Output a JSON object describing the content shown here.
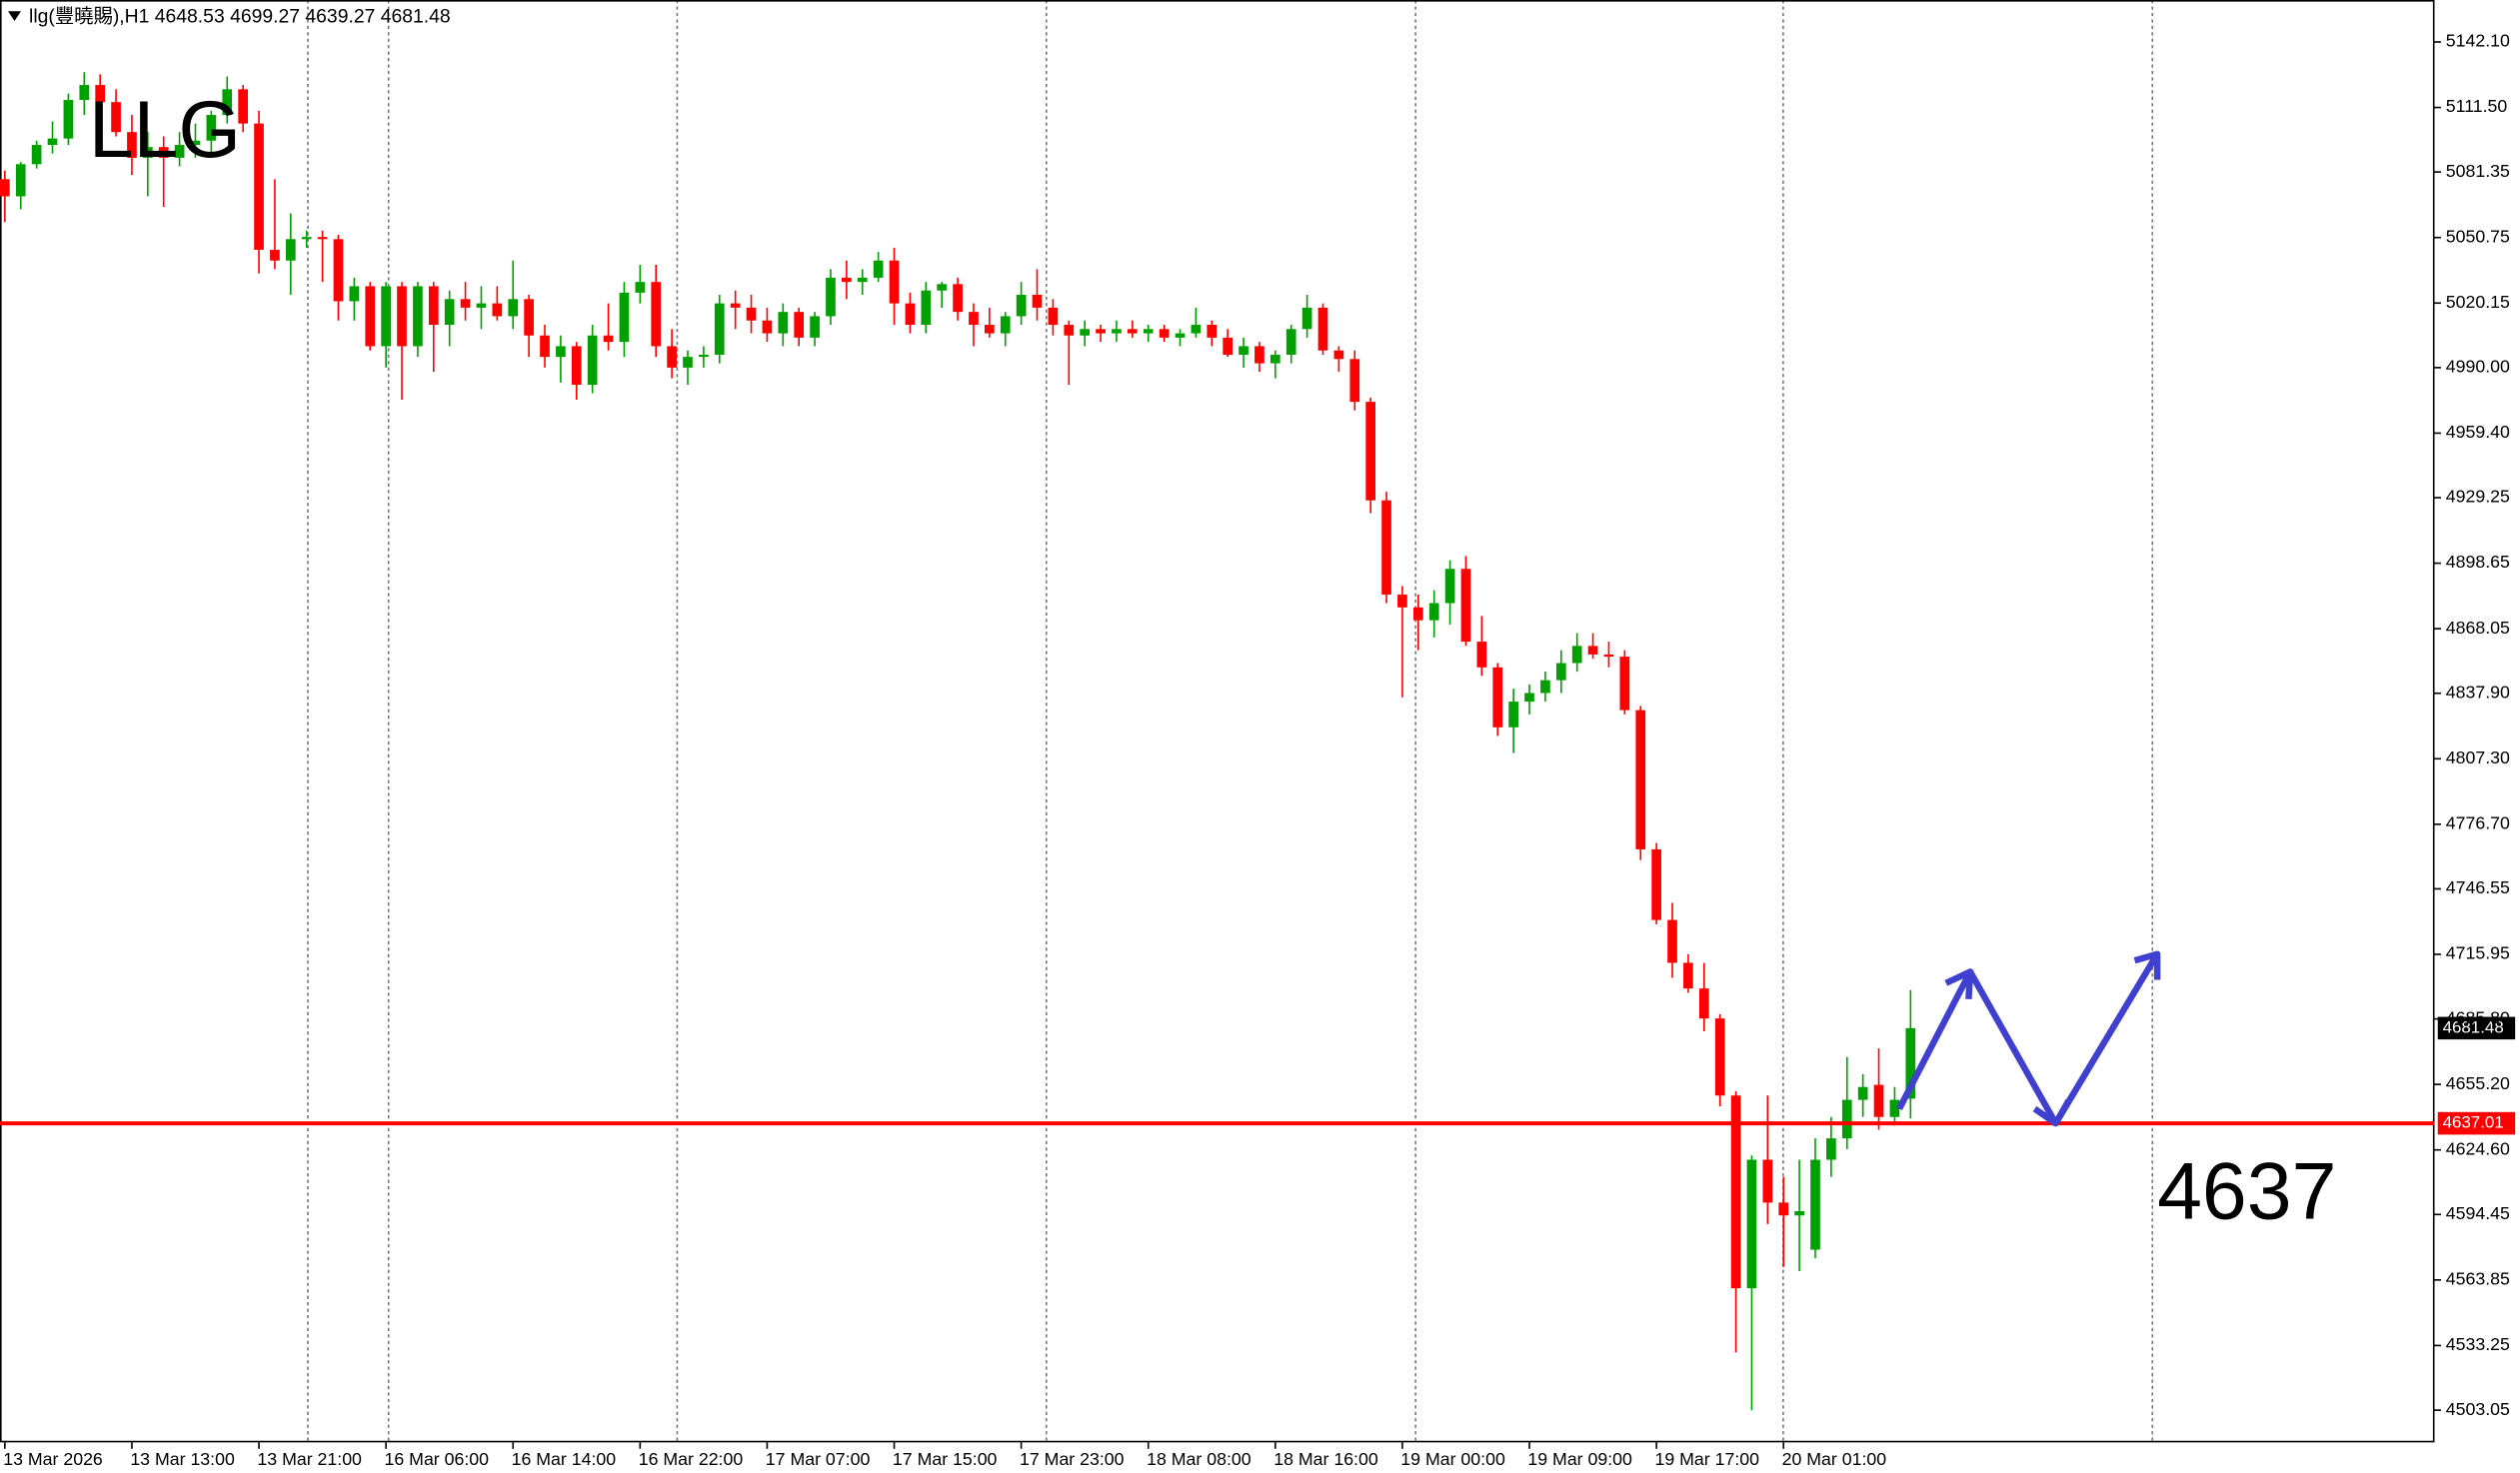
{
  "chart_data": {
    "type": "candlestick",
    "title": "llg(豐曉賜),H1",
    "annotations": [
      "LLG",
      "4637"
    ],
    "up_color": "#00a000",
    "down_color": "#ff0000",
    "ylim": [
      4488,
      5161.7
    ],
    "yticks": [
      {
        "value": 5142.1,
        "label": "5142.10"
      },
      {
        "value": 5111.5,
        "label": "5111.50"
      },
      5081.35,
      5050.75,
      5020.15,
      {
        "value": 4990,
        "label": "4990.00"
      },
      {
        "value": 4959.4,
        "label": "4959.40"
      },
      4929.25,
      4898.65,
      4868.05,
      {
        "value": 4837.9,
        "label": "4837.90"
      },
      {
        "value": 4807.3,
        "label": "4807.30"
      },
      {
        "value": 4776.7,
        "label": "4776.70"
      },
      4746.55,
      4715.95,
      {
        "value": 4685.8,
        "label": "4685.80"
      },
      {
        "value": 4655.2,
        "label": "4655.20"
      },
      {
        "value": 4624.6,
        "label": "4624.60"
      },
      4594.45,
      4563.85,
      4533.25,
      4503.05
    ],
    "x_labels": [
      "13 Mar 2026",
      "13 Mar 13:00",
      "13 Mar 21:00",
      "16 Mar 06:00",
      "16 Mar 14:00",
      "16 Mar 22:00",
      "17 Mar 07:00",
      "17 Mar 15:00",
      "17 Mar 23:00",
      "18 Mar 08:00",
      "18 Mar 16:00",
      "19 Mar 00:00",
      "19 Mar 09:00",
      "19 Mar 17:00",
      "20 Mar 01:00"
    ],
    "hline": {
      "value": 4637.01,
      "color": "#ff0000"
    },
    "ohlc": [
      [
        5078,
        5082,
        5058,
        5070
      ],
      [
        5070,
        5086,
        5064,
        5085
      ],
      [
        5085,
        5096,
        5083,
        5094
      ],
      [
        5094,
        5105,
        5090,
        5097
      ],
      [
        5097,
        5118,
        5094,
        5115
      ],
      [
        5115,
        5128,
        5108,
        5122
      ],
      [
        5122,
        5127,
        5112,
        5114
      ],
      [
        5114,
        5120,
        5098,
        5100
      ],
      [
        5100,
        5108,
        5080,
        5088
      ],
      [
        5088,
        5100,
        5070,
        5093
      ],
      [
        5093,
        5098,
        5065,
        5088
      ],
      [
        5088,
        5100,
        5084,
        5094
      ],
      [
        5094,
        5104,
        5088,
        5096
      ],
      [
        5096,
        5110,
        5088,
        5108
      ],
      [
        5108,
        5126,
        5104,
        5120
      ],
      [
        5120,
        5122,
        5100,
        5104
      ],
      [
        5104,
        5110,
        5034,
        5045
      ],
      [
        5045,
        5078,
        5036,
        5040
      ],
      [
        5040,
        5062,
        5024,
        5050
      ],
      [
        5050,
        5054,
        5046,
        5051
      ],
      [
        5051,
        5054,
        5030,
        5050
      ],
      [
        5050,
        5052,
        5012,
        5021
      ],
      [
        5021,
        5032,
        5012,
        5028
      ],
      [
        5028,
        5030,
        4998,
        5000
      ],
      [
        5000,
        5030,
        4990,
        5028
      ],
      [
        5028,
        5030,
        4975,
        5000
      ],
      [
        5000,
        5030,
        4995,
        5028
      ],
      [
        5028,
        5030,
        4988,
        5010
      ],
      [
        5010,
        5026,
        5000,
        5022
      ],
      [
        5022,
        5030,
        5012,
        5018
      ],
      [
        5018,
        5028,
        5008,
        5020
      ],
      [
        5020,
        5028,
        5012,
        5014
      ],
      [
        5014,
        5040,
        5008,
        5022
      ],
      [
        5022,
        5024,
        4995,
        5005
      ],
      [
        5005,
        5010,
        4990,
        4995
      ],
      [
        4995,
        5005,
        4983,
        5000
      ],
      [
        5000,
        5002,
        4975,
        4982
      ],
      [
        4982,
        5010,
        4978,
        5005
      ],
      [
        5005,
        5020,
        4998,
        5002
      ],
      [
        5002,
        5030,
        4995,
        5025
      ],
      [
        5025,
        5038,
        5020,
        5030
      ],
      [
        5030,
        5038,
        4995,
        5000
      ],
      [
        5000,
        5008,
        4985,
        4990
      ],
      [
        4990,
        4998,
        4982,
        4995
      ],
      [
        4995,
        5000,
        4990,
        4996
      ],
      [
        4996,
        5024,
        4992,
        5020
      ],
      [
        5020,
        5026,
        5008,
        5018
      ],
      [
        5018,
        5024,
        5006,
        5012
      ],
      [
        5012,
        5018,
        5002,
        5006
      ],
      [
        5006,
        5020,
        5000,
        5016
      ],
      [
        5016,
        5018,
        5000,
        5004
      ],
      [
        5004,
        5016,
        5000,
        5014
      ],
      [
        5014,
        5036,
        5010,
        5032
      ],
      [
        5032,
        5040,
        5022,
        5030
      ],
      [
        5030,
        5036,
        5024,
        5032
      ],
      [
        5032,
        5044,
        5030,
        5040
      ],
      [
        5040,
        5046,
        5010,
        5020
      ],
      [
        5020,
        5025,
        5006,
        5010
      ],
      [
        5010,
        5030,
        5006,
        5026
      ],
      [
        5026,
        5030,
        5018,
        5029
      ],
      [
        5029,
        5032,
        5012,
        5016
      ],
      [
        5016,
        5020,
        5000,
        5010
      ],
      [
        5010,
        5018,
        5004,
        5006
      ],
      [
        5006,
        5016,
        5000,
        5014
      ],
      [
        5014,
        5030,
        5010,
        5024
      ],
      [
        5024,
        5036,
        5012,
        5018
      ],
      [
        5018,
        5022,
        5005,
        5010
      ],
      [
        5010,
        5012,
        4982,
        5005
      ],
      [
        5005,
        5012,
        5000,
        5008
      ],
      [
        5008,
        5010,
        5002,
        5006
      ],
      [
        5006,
        5012,
        5002,
        5008
      ],
      [
        5008,
        5012,
        5004,
        5006
      ],
      [
        5006,
        5010,
        5002,
        5008
      ],
      [
        5008,
        5010,
        5002,
        5004
      ],
      [
        5004,
        5008,
        5000,
        5006
      ],
      [
        5006,
        5018,
        5004,
        5010
      ],
      [
        5010,
        5012,
        5000,
        5004
      ],
      [
        5004,
        5008,
        4995,
        4996
      ],
      [
        4996,
        5004,
        4990,
        5000
      ],
      [
        5000,
        5002,
        4988,
        4992
      ],
      [
        4992,
        4998,
        4985,
        4996
      ],
      [
        4996,
        5010,
        4992,
        5008
      ],
      [
        5008,
        5024,
        5004,
        5018
      ],
      [
        5018,
        5020,
        4996,
        4998
      ],
      [
        4998,
        5000,
        4988,
        4994
      ],
      [
        4994,
        4998,
        4970,
        4974
      ],
      [
        4974,
        4976,
        4922,
        4928
      ],
      [
        4928,
        4932,
        4880,
        4884
      ],
      [
        4884,
        4888,
        4836,
        4878
      ],
      [
        4878,
        4884,
        4858,
        4872
      ],
      [
        4872,
        4886,
        4864,
        4880
      ],
      [
        4880,
        4900,
        4870,
        4896
      ],
      [
        4896,
        4902,
        4860,
        4862
      ],
      [
        4862,
        4874,
        4846,
        4850
      ],
      [
        4850,
        4852,
        4818,
        4822
      ],
      [
        4822,
        4840,
        4810,
        4834
      ],
      [
        4834,
        4842,
        4828,
        4838
      ],
      [
        4838,
        4848,
        4834,
        4844
      ],
      [
        4844,
        4858,
        4838,
        4852
      ],
      [
        4852,
        4866,
        4848,
        4860
      ],
      [
        4860,
        4866,
        4854,
        4856
      ],
      [
        4856,
        4862,
        4850,
        4855
      ],
      [
        4855,
        4858,
        4828,
        4830
      ],
      [
        4830,
        4832,
        4760,
        4765
      ],
      [
        4765,
        4768,
        4730,
        4732
      ],
      [
        4732,
        4740,
        4705,
        4712
      ],
      [
        4712,
        4716,
        4698,
        4700
      ],
      [
        4700,
        4712,
        4680,
        4686
      ],
      [
        4686,
        4688,
        4645,
        4650
      ],
      [
        4650,
        4652,
        4530,
        4560
      ],
      [
        4560,
        4622,
        4503,
        4620
      ],
      [
        4620,
        4650,
        4590,
        4600
      ],
      [
        4600,
        4612,
        4570,
        4594
      ],
      [
        4594,
        4620,
        4568,
        4596
      ],
      [
        4578,
        4630,
        4574,
        4620
      ],
      [
        4620,
        4640,
        4612,
        4630
      ],
      [
        4630,
        4668,
        4625,
        4648
      ],
      [
        4648,
        4660,
        4640,
        4654
      ],
      [
        4655,
        4672,
        4634,
        4640
      ],
      [
        4640,
        4654,
        4636,
        4648
      ],
      [
        4648.53,
        4699.27,
        4639.27,
        4681.48
      ]
    ]
  }
}
